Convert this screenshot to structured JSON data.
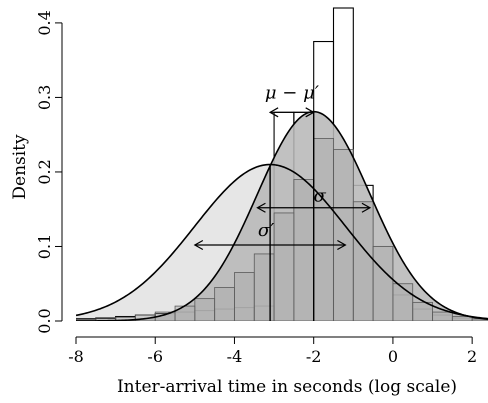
{
  "chart_data": {
    "type": "histogram",
    "title": "",
    "xlabel": "Inter-arrival time in seconds (log scale)",
    "ylabel": "Density",
    "xlim": [
      -8,
      2.4
    ],
    "ylim": [
      0,
      0.42
    ],
    "xticks": [
      -8,
      -6,
      -4,
      -2,
      0,
      2
    ],
    "yticks": [
      0.0,
      0.1,
      0.2,
      0.3,
      0.4
    ],
    "xtick_labels": [
      "-8",
      "-6",
      "-4",
      "-2",
      "0",
      "2"
    ],
    "ytick_labels": [
      "0.0",
      "0.1",
      "0.2",
      "0.3",
      "0.4"
    ],
    "grid": false,
    "histograms": [
      {
        "style": "outline",
        "bin_width": 0.5,
        "bin_starts": [
          -8.0,
          -7.5,
          -7.0,
          -6.5,
          -6.0,
          -5.5,
          -5.0,
          -4.5,
          -4.0,
          -3.5,
          -3.0,
          -2.5,
          -2.0,
          -1.5,
          -1.0,
          -0.5,
          0.0,
          0.5,
          1.0,
          1.5,
          2.0
        ],
        "density": [
          0.003,
          0.004,
          0.006,
          0.008,
          0.01,
          0.012,
          0.014,
          0.016,
          0.018,
          0.02,
          0.28,
          0.28,
          0.375,
          0.42,
          0.182,
          0.1,
          0.035,
          0.016,
          0.008,
          0.004,
          0.002
        ]
      },
      {
        "style": "gray",
        "bin_width": 0.5,
        "bin_starts": [
          -8.0,
          -7.5,
          -7.0,
          -6.5,
          -6.0,
          -5.5,
          -5.0,
          -4.5,
          -4.0,
          -3.5,
          -3.0,
          -2.5,
          -2.0,
          -1.5,
          -1.0,
          -0.5,
          0.0,
          0.5,
          1.0,
          1.5,
          2.0
        ],
        "density": [
          0.002,
          0.003,
          0.005,
          0.008,
          0.012,
          0.02,
          0.03,
          0.045,
          0.065,
          0.09,
          0.145,
          0.19,
          0.245,
          0.23,
          0.16,
          0.1,
          0.05,
          0.025,
          0.012,
          0.006,
          0.003
        ]
      }
    ],
    "curves": [
      {
        "type": "normal",
        "mean": -3.1,
        "sd": 1.9,
        "fill": "#e6e6e6"
      },
      {
        "type": "normal",
        "mean": -2.0,
        "sd": 1.42,
        "fill": "#b8b8b8"
      }
    ],
    "annotations": [
      {
        "label": "μ − μ′",
        "kind": "double-arrow",
        "x_from": -3.1,
        "x_to": -2.0,
        "y": 0.28
      },
      {
        "label": "σ",
        "kind": "double-arrow",
        "x_from": -3.42,
        "x_to": -0.58,
        "y": 0.152
      },
      {
        "label": "σ′",
        "kind": "double-arrow",
        "x_from": -5.0,
        "x_to": -1.2,
        "y": 0.102
      }
    ]
  }
}
